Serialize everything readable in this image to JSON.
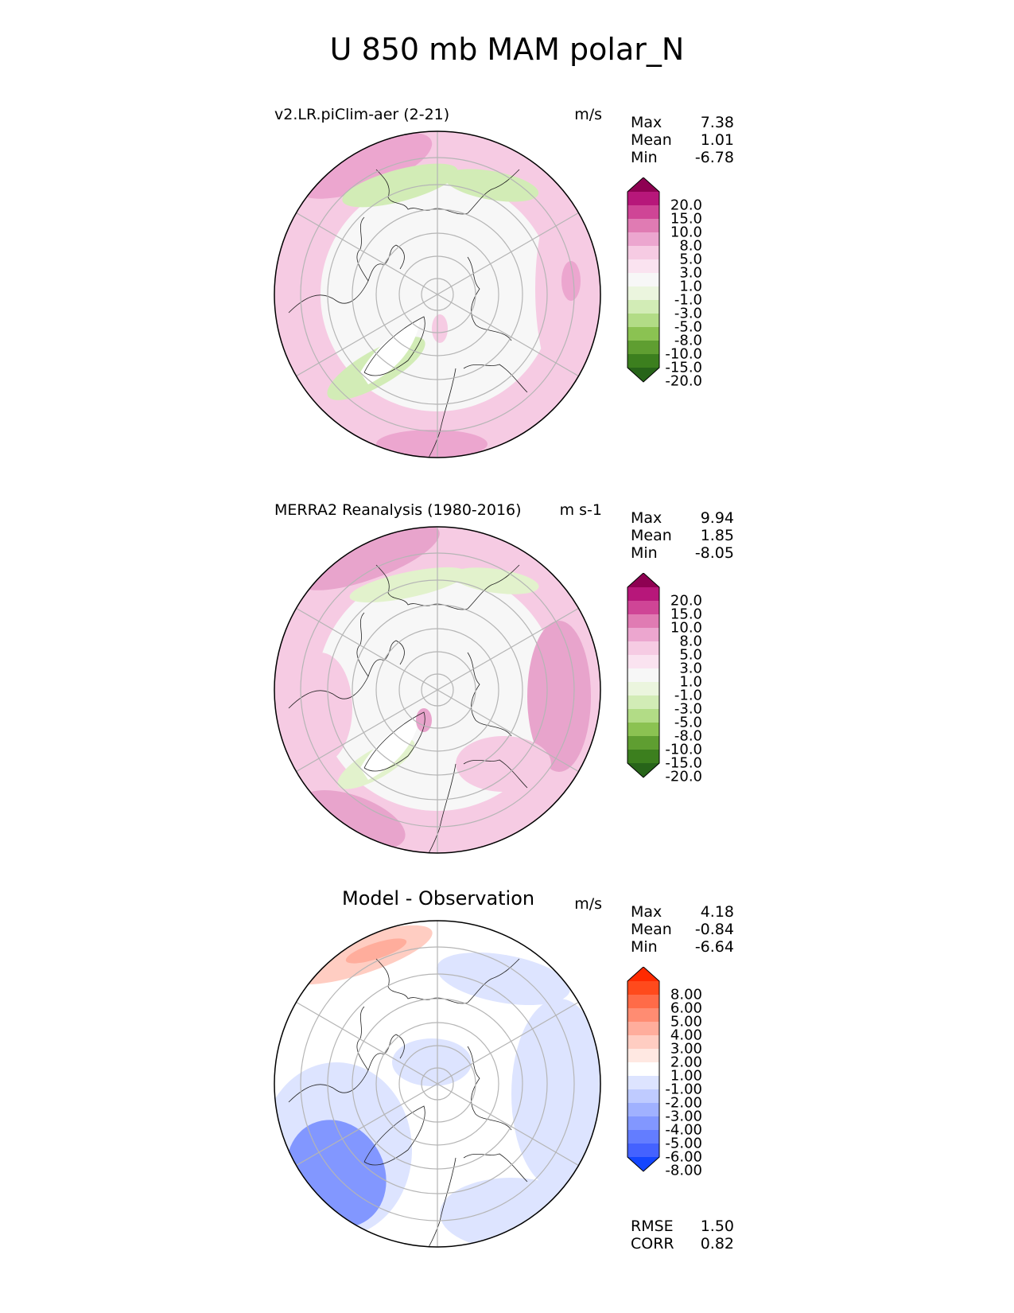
{
  "figure": {
    "title": "U 850 mb MAM polar_N"
  },
  "panels": [
    {
      "title": "v2.LR.piClim-aer (2-21)",
      "units": "m/s",
      "stats": [
        {
          "label": "Max",
          "value": "7.38"
        },
        {
          "label": "Mean",
          "value": "1.01"
        },
        {
          "label": "Min",
          "value": "-6.78"
        }
      ],
      "colorbar": {
        "labels": [
          "20.0",
          "15.0",
          "10.0",
          "8.0",
          "5.0",
          "3.0",
          "1.0",
          "-1.0",
          "-3.0",
          "-5.0",
          "-8.0",
          "-10.0",
          "-15.0",
          "-20.0"
        ],
        "colors": [
          "#8e0152",
          "#b7177a",
          "#cf4596",
          "#e07bb3",
          "#eca6cf",
          "#f6cbe3",
          "#fae3f0",
          "#f7f7f7",
          "#ebf5de",
          "#d2ecb6",
          "#b2dc86",
          "#8bc252",
          "#5f9e31",
          "#3c7f1e",
          "#276419"
        ]
      },
      "map_palette": {
        "ocean_base": "#f7f7f7",
        "positive": "#f6cbe3",
        "strong_positive": "#eca6cf",
        "negative": "#d2ecb6"
      }
    },
    {
      "title": "MERRA2 Reanalysis (1980-2016)",
      "units": "m s-1",
      "stats": [
        {
          "label": "Max",
          "value": "9.94"
        },
        {
          "label": "Mean",
          "value": "1.85"
        },
        {
          "label": "Min",
          "value": "-8.05"
        }
      ],
      "colorbar": {
        "labels": [
          "20.0",
          "15.0",
          "10.0",
          "8.0",
          "5.0",
          "3.0",
          "1.0",
          "-1.0",
          "-3.0",
          "-5.0",
          "-8.0",
          "-10.0",
          "-15.0",
          "-20.0"
        ],
        "colors": [
          "#8e0152",
          "#b7177a",
          "#cf4596",
          "#e07bb3",
          "#eca6cf",
          "#f6cbe3",
          "#fae3f0",
          "#f7f7f7",
          "#ebf5de",
          "#d2ecb6",
          "#b2dc86",
          "#8bc252",
          "#5f9e31",
          "#3c7f1e",
          "#276419"
        ]
      },
      "map_palette": {
        "ocean_base": "#f7f7f7",
        "positive": "#f6cbe3",
        "strong_positive": "#e8a4cc",
        "negative": "#e2f2cc"
      }
    },
    {
      "title": "Model - Observation",
      "units": "m/s",
      "stats": [
        {
          "label": "Max",
          "value": "4.18"
        },
        {
          "label": "Mean",
          "value": "-0.84"
        },
        {
          "label": "Min",
          "value": "-6.64"
        }
      ],
      "colorbar": {
        "labels": [
          "8.00",
          "6.00",
          "5.00",
          "4.00",
          "3.00",
          "2.00",
          "1.00",
          "-1.00",
          "-2.00",
          "-3.00",
          "-4.00",
          "-5.00",
          "-6.00",
          "-8.00"
        ],
        "colors": [
          "#ff2a00",
          "#ff4a1c",
          "#ff6b48",
          "#ff8c72",
          "#ffad9c",
          "#ffcdc2",
          "#ffe8e2",
          "#ffffff",
          "#dde4ff",
          "#bfcbff",
          "#a0b1ff",
          "#8297ff",
          "#637dff",
          "#4462ff",
          "#1446ff"
        ]
      },
      "map_palette": {
        "ocean_base": "#ffffff",
        "positive": "#ffcdc2",
        "strong_positive": "#ffad9c",
        "negative": "#dde4ff",
        "strong_negative": "#8297ff"
      },
      "extra_stats": [
        {
          "label": "RMSE",
          "value": "1.50"
        },
        {
          "label": "CORR",
          "value": "0.82"
        }
      ]
    }
  ]
}
